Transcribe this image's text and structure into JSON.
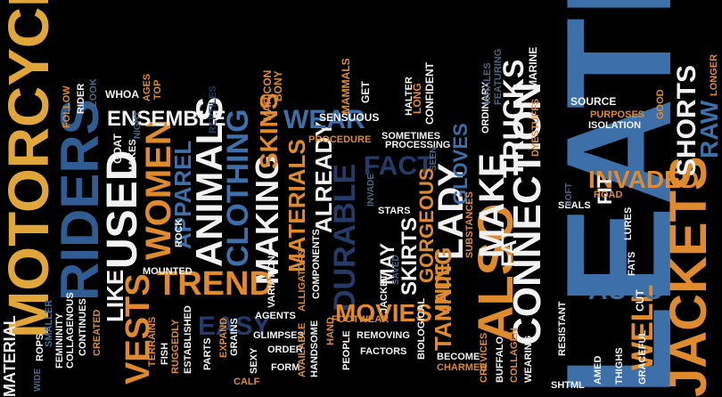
{
  "image": {
    "kind": "word-cloud",
    "background": "#000000"
  },
  "palette": {
    "white": "#f2f2f2",
    "orange": "#e08a2e",
    "gold": "#e0a63a",
    "steel_blue": "#3d6fa8",
    "navy": "#233b66",
    "slate": "#51637e"
  },
  "words": [
    "LEATH",
    "MOTORCYCLE",
    "RIDERS",
    "JACKETS",
    "ALSO",
    "CONNECTION",
    "ANIMALS",
    "USED",
    "WOMEN",
    "MAKING",
    "CLOTHING",
    "TREND",
    "VESTS",
    "FACT",
    "LADY",
    "MAKE",
    "TRUCKS",
    "DURABLE",
    "ALREADY",
    "SKINS",
    "MATERIALS",
    "WEAR",
    "ENSEMBLE",
    "APPAREL",
    "INVADED",
    "WELL",
    "AUTO",
    "SHORTS",
    "RAW",
    "TANNING",
    "SKIRTS",
    "GORGEOUS",
    "MAY",
    "MOVIES",
    "GLOVES",
    "MADE",
    "EASY",
    "LIKE",
    "FIT",
    "CUT",
    "FAT",
    "FOLLOW",
    "RIDER",
    "LOOK",
    "WHOA",
    "AGES",
    "TOP",
    "REPTILES",
    "GOAT",
    "MAKES",
    "NIGHT",
    "MARICON",
    "BONY",
    "MAMMALS",
    "GET",
    "HALTER",
    "LONG",
    "CONFIDENT",
    "SENSUOUS",
    "PROCEDURE",
    "SOMETIMES",
    "PROCESSING",
    "SEEN",
    "INVADE",
    "STARS",
    "SUBSTANCES",
    "ORDINARY",
    "WHALES",
    "FEATURING",
    "MARINE",
    "DYESTUFFS",
    "SOURCE",
    "PURPOSES",
    "ISOLATION",
    "GOOD",
    "LONGER",
    "ROAD",
    "SEALS",
    "SOFT",
    "LURES",
    "FATS",
    "WIDE",
    "ROPS",
    "SMALLER",
    "FEMININITY",
    "COLLAGENOUS",
    "CONTINUES",
    "CREATED",
    "FISH",
    "TERRAINS",
    "RUGGEDLY",
    "ESTABLISHED",
    "ROCK",
    "MOUNTED",
    "PARTS",
    "EXPAND",
    "GRAINS",
    "CALF",
    "SEXY",
    "GLIMPSES",
    "ORDER",
    "FORM",
    "AGENTS",
    "VARIATIONS",
    "ALLIGATORS",
    "COMPONENTS",
    "AVAILABLE",
    "HANDSOME",
    "HAND",
    "FOOTWEAR",
    "REMOVING",
    "FACTORS",
    "PEOPLE",
    "BIOLOGICAL",
    "BECOME",
    "CHARMED",
    "CREVICES",
    "BUFFALO",
    "COLLAGEN",
    "WEARING",
    "RESISTANT",
    "SHTML",
    "AMED",
    "THIGHS",
    "GRACEFUL",
    "SAVED",
    "JACKET",
    "MATERIAL"
  ]
}
